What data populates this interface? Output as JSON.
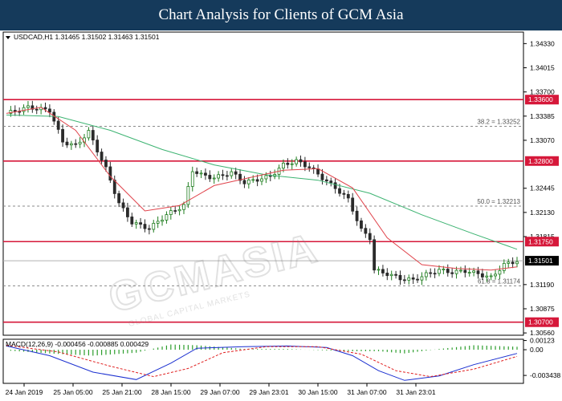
{
  "header": {
    "title": "Chart Analysis for Clients of GCM Asia"
  },
  "watermark": {
    "brand": "GCMASIA",
    "tagline": "GLOBAL CAPITAL MARKETS"
  },
  "colors": {
    "header_bg": "#153a5b",
    "candle_up": "#1f7d1f",
    "candle_down": "#2b2b2b",
    "ma_fast": "#e0434b",
    "ma_slow": "#3cb371",
    "resistance": "#d6183a",
    "macd_line": "#1a2fd0",
    "macd_signal": "#e02020",
    "macd_hist": "#2e9e2e"
  },
  "chart_data": {
    "type": "candlestick",
    "symbol_info": "USDCAD,H1  1.31465 1.31502 1.31463 1.31501",
    "ylim": [
      1.3053,
      1.3448
    ],
    "y_ticks": [
      1.3433,
      1.34015,
      1.337,
      1.33385,
      1.3307,
      1.32445,
      1.3213,
      1.31815,
      1.3119,
      1.30875,
      1.3056
    ],
    "x_ticks": [
      "24 Jan 2019",
      "25 Jan 05:00",
      "25 Jan 21:00",
      "28 Jan 15:00",
      "29 Jan 07:00",
      "29 Jan 23:01",
      "30 Jan 15:00",
      "31 Jan 07:00",
      "31 Jan 23:01"
    ],
    "current_price": 1.31501,
    "key_levels": [
      1.336,
      1.328,
      1.3175,
      1.307
    ],
    "fibonacci": [
      {
        "label": "38.2 = 1.33252",
        "value": 1.33252
      },
      {
        "label": "50.0 = 1.32213",
        "value": 1.32213
      },
      {
        "label": "61.8 = 1.31174",
        "value": 1.31174
      }
    ],
    "close_path": [
      [
        0,
        1.3342
      ],
      [
        5,
        1.335
      ],
      [
        10,
        1.3346
      ],
      [
        13,
        1.3305
      ],
      [
        16,
        1.33
      ],
      [
        19,
        1.3318
      ],
      [
        23,
        1.327
      ],
      [
        26,
        1.3225
      ],
      [
        29,
        1.32
      ],
      [
        33,
        1.3192
      ],
      [
        37,
        1.321
      ],
      [
        41,
        1.3222
      ],
      [
        43,
        1.3268
      ],
      [
        45,
        1.3262
      ],
      [
        48,
        1.3258
      ],
      [
        52,
        1.3265
      ],
      [
        55,
        1.3252
      ],
      [
        58,
        1.3256
      ],
      [
        61,
        1.326
      ],
      [
        64,
        1.3275
      ],
      [
        67,
        1.328
      ],
      [
        70,
        1.3272
      ],
      [
        73,
        1.3258
      ],
      [
        76,
        1.3245
      ],
      [
        79,
        1.323
      ],
      [
        82,
        1.319
      ],
      [
        84,
        1.318
      ],
      [
        85,
        1.3138
      ],
      [
        88,
        1.3133
      ],
      [
        91,
        1.3127
      ],
      [
        94,
        1.3125
      ],
      [
        97,
        1.3132
      ],
      [
        100,
        1.3138
      ],
      [
        103,
        1.3135
      ],
      [
        106,
        1.3137
      ],
      [
        109,
        1.3133
      ],
      [
        112,
        1.3128
      ],
      [
        115,
        1.3145
      ],
      [
        118,
        1.315
      ]
    ],
    "ma_fast": [
      [
        0,
        1.3342
      ],
      [
        8,
        1.335
      ],
      [
        16,
        1.332
      ],
      [
        24,
        1.326
      ],
      [
        32,
        1.3215
      ],
      [
        40,
        1.3222
      ],
      [
        48,
        1.3248
      ],
      [
        56,
        1.3258
      ],
      [
        64,
        1.3268
      ],
      [
        72,
        1.327
      ],
      [
        80,
        1.3245
      ],
      [
        88,
        1.318
      ],
      [
        96,
        1.3145
      ],
      [
        104,
        1.314
      ],
      [
        112,
        1.3138
      ],
      [
        118,
        1.3142
      ]
    ],
    "ma_slow": [
      [
        0,
        1.334
      ],
      [
        12,
        1.3338
      ],
      [
        24,
        1.332
      ],
      [
        36,
        1.3295
      ],
      [
        48,
        1.3275
      ],
      [
        60,
        1.3262
      ],
      [
        72,
        1.3255
      ],
      [
        84,
        1.3238
      ],
      [
        96,
        1.321
      ],
      [
        108,
        1.3185
      ],
      [
        118,
        1.3165
      ]
    ],
    "macd": {
      "label": "MACD(12,26,9) -0.000456 -0.000885 0.000429",
      "ylim": [
        -0.0045,
        0.0014
      ],
      "y_ticks": [
        0.00123,
        0.0,
        -0.003438
      ],
      "main": [
        [
          0,
          0.0005
        ],
        [
          10,
          -0.0008
        ],
        [
          20,
          -0.003
        ],
        [
          30,
          -0.004
        ],
        [
          38,
          -0.0018
        ],
        [
          44,
          0.0002
        ],
        [
          55,
          0.0004
        ],
        [
          65,
          0.0005
        ],
        [
          74,
          0.0003
        ],
        [
          80,
          -0.0008
        ],
        [
          86,
          -0.0028
        ],
        [
          92,
          -0.0041
        ],
        [
          100,
          -0.0035
        ],
        [
          108,
          -0.002
        ],
        [
          118,
          -0.0005
        ]
      ],
      "signal": [
        [
          0,
          0.0006
        ],
        [
          12,
          -0.0003
        ],
        [
          24,
          -0.0022
        ],
        [
          34,
          -0.0036
        ],
        [
          42,
          -0.0025
        ],
        [
          50,
          -0.0004
        ],
        [
          60,
          0.0004
        ],
        [
          72,
          0.0004
        ],
        [
          82,
          -0.0006
        ],
        [
          90,
          -0.0028
        ],
        [
          98,
          -0.0036
        ],
        [
          108,
          -0.0026
        ],
        [
          118,
          -0.0009
        ]
      ],
      "histogram": [
        [
          0,
          -0.0001
        ],
        [
          10,
          -0.0005
        ],
        [
          20,
          -0.0008
        ],
        [
          30,
          -0.0004
        ],
        [
          38,
          0.0007
        ],
        [
          44,
          0.0006
        ],
        [
          55,
          0.0001
        ],
        [
          65,
          0.0001
        ],
        [
          74,
          -0.0001
        ],
        [
          80,
          -0.0002
        ],
        [
          86,
          -0.0002
        ],
        [
          92,
          -0.0005
        ],
        [
          100,
          0.0001
        ],
        [
          108,
          0.0006
        ],
        [
          118,
          0.0004
        ]
      ]
    }
  }
}
